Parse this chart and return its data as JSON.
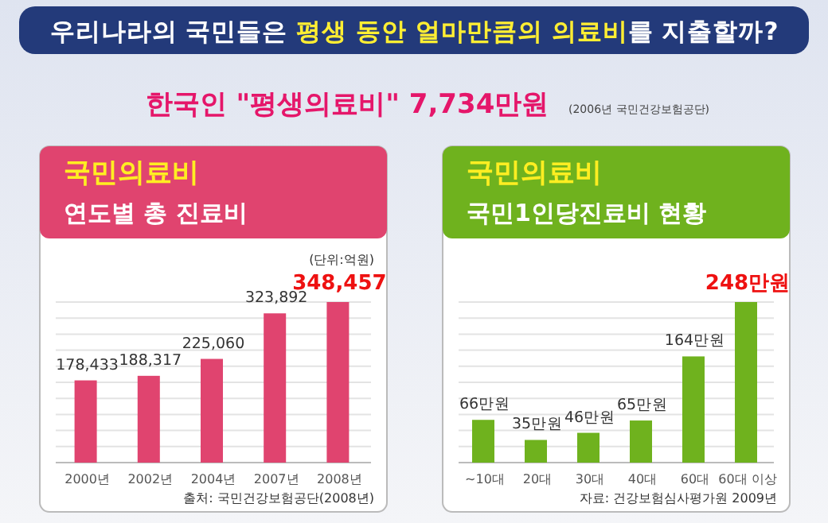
{
  "chart_data": [
    {
      "type": "other",
      "title": "우리나라의 국민들은 **평생 동안 얼마만큼의 의료비**를 지출할까?",
      "subtitle": "한국인 \"평생의료비\" 7,734만원",
      "annotations": [
        "(2006년 국민건강보험공단)"
      ]
    },
    {
      "type": "bar",
      "title": "국민의료비",
      "subtitle": "연도별 총 진료비",
      "categories": [
        "2000년",
        "2002년",
        "2004년",
        "2007년",
        "2008년"
      ],
      "values": [
        178433,
        188317,
        225060,
        323892,
        348457
      ],
      "value_labels": [
        "178,433",
        "188,317",
        "225,060",
        "323,892",
        "348,457"
      ],
      "color": "#e0446f",
      "grid": "y",
      "annotations": [
        "(단위:억원)",
        "출처: 국민건강보험공단(2008년)"
      ]
    },
    {
      "type": "bar",
      "title": "국민의료비",
      "subtitle": "국민1인당진료비 현황",
      "categories": [
        "~10대",
        "20대",
        "30대",
        "40대",
        "60대",
        "60대 이상"
      ],
      "values": [
        66,
        35,
        46,
        65,
        164,
        248
      ],
      "value_labels": [
        "66만원",
        "35만원",
        "46만원",
        "65만원",
        "164만원",
        "248만원"
      ],
      "color": "#6fb21e",
      "grid": "y",
      "annotations": [
        "자료: 건강보험심사평가원 2009년"
      ]
    }
  ]
}
